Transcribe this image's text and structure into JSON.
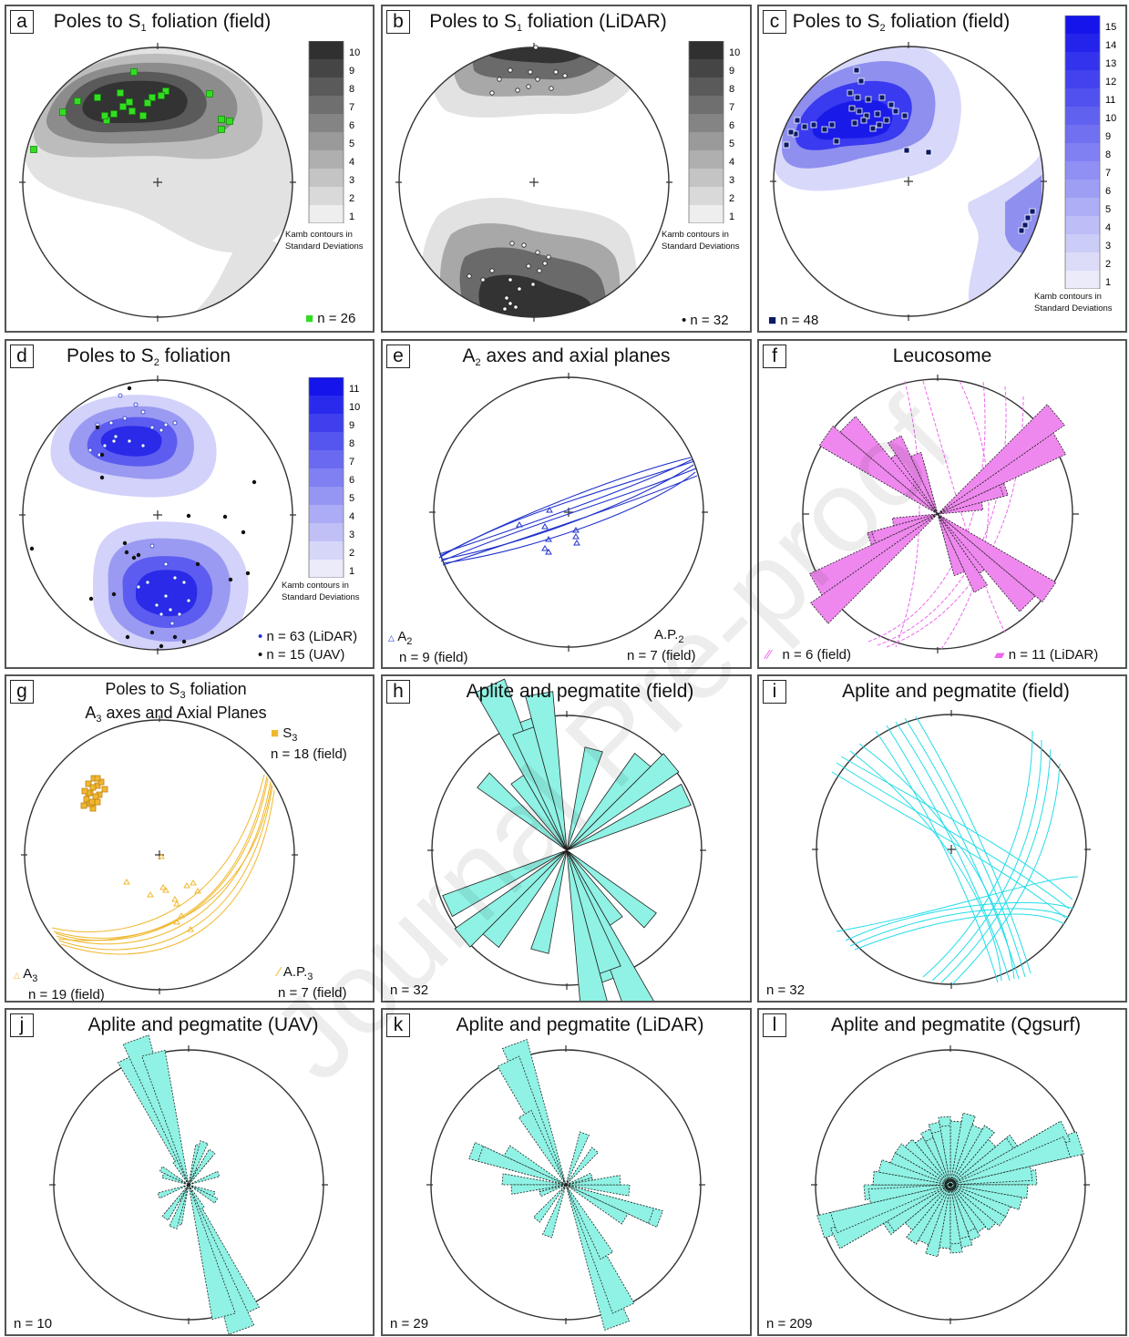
{
  "watermark": "Journal Pre-proof",
  "panels": {
    "a": {
      "label": "a",
      "title_pre": "Poles to S",
      "title_sub": "1",
      "title_post": " foliation (field)",
      "colorbar": {
        "ticks": [
          "10",
          "9",
          "8",
          "7",
          "6",
          "5",
          "4",
          "3",
          "2",
          "1"
        ],
        "note": "Kamb contours in Standard Deviations"
      },
      "count": "n = 26",
      "marker_color": "#33dd22"
    },
    "b": {
      "label": "b",
      "title_pre": "Poles to S",
      "title_sub": "1",
      "title_post": " foliation (LiDAR)",
      "colorbar": {
        "ticks": [
          "10",
          "9",
          "8",
          "7",
          "6",
          "5",
          "4",
          "3",
          "2",
          "1"
        ],
        "note": "Kamb contours in Standard Deviations"
      },
      "count": "n = 32"
    },
    "c": {
      "label": "c",
      "title_pre": "Poles to S",
      "title_sub": "2",
      "title_post": " foliation (field)",
      "colorbar": {
        "ticks": [
          "15",
          "14",
          "13",
          "12",
          "11",
          "10",
          "9",
          "8",
          "7",
          "6",
          "5",
          "4",
          "3",
          "2",
          "1"
        ],
        "note": "Kamb contours in Standard Deviations"
      },
      "count": "n = 48",
      "marker_color": "#0a1a66"
    },
    "d": {
      "label": "d",
      "title_pre": "Poles to S",
      "title_sub": "2",
      "title_post": " foliation",
      "colorbar": {
        "ticks": [
          "11",
          "10",
          "9",
          "8",
          "7",
          "6",
          "5",
          "4",
          "3",
          "2",
          "1"
        ],
        "note": "Kamb contours in Standard Deviations"
      },
      "count_lidar": "n = 63 (LiDAR)",
      "count_uav": "n = 15 (UAV)"
    },
    "e": {
      "label": "e",
      "title_pre": "A",
      "title_sub": "2",
      "title_post": " axes and axial planes",
      "legend_a_pre": "A",
      "legend_a_sub": "2",
      "legend_a_n": "n = 9 (field)",
      "legend_ap_pre": "A.P.",
      "legend_ap_sub": "2",
      "legend_ap_n": "n = 7 (field)",
      "color": "#2233cc"
    },
    "f": {
      "label": "f",
      "title": "Leucosome",
      "legend_field": "n = 6 (field)",
      "legend_lidar": "n = 11 (LiDAR)",
      "color": "#ee88ee"
    },
    "g": {
      "label": "g",
      "title_line1_pre": "Poles to S",
      "title_line1_sub": "3",
      "title_line1_post": " foliation",
      "title_line2_pre": "A",
      "title_line2_sub": "3",
      "title_line2_post": " axes and Axial Planes",
      "legend_s_pre": "S",
      "legend_s_sub": "3",
      "legend_s_n": "n = 18 (field)",
      "legend_a_pre": "A",
      "legend_a_sub": "3",
      "legend_a_n": "n = 19 (field)",
      "legend_ap_pre": "A.P.",
      "legend_ap_sub": "3",
      "legend_ap_n": "n = 7 (field)",
      "color": "#f0b830"
    },
    "h": {
      "label": "h",
      "title": "Aplite and pegmatite (field)",
      "count": "n = 32",
      "color": "#8ff2e4"
    },
    "i": {
      "label": "i",
      "title": "Aplite and pegmatite (field)",
      "count": "n = 32",
      "color": "#22dde8"
    },
    "j": {
      "label": "j",
      "title": "Aplite and pegmatite (UAV)",
      "count": "n = 10",
      "color": "#8ff2e4"
    },
    "k": {
      "label": "k",
      "title": "Aplite and pegmatite (LiDAR)",
      "count": "n = 29",
      "color": "#8ff2e4"
    },
    "l": {
      "label": "l",
      "title": "Aplite and pegmatite (Qgsurf)",
      "count": "n = 209",
      "color": "#8ff2e4"
    }
  },
  "rose_data": {
    "h": [
      [
        340,
        150
      ],
      [
        335,
        200
      ],
      [
        325,
        95
      ],
      [
        310,
        120
      ],
      [
        50,
        150
      ],
      [
        65,
        145
      ],
      [
        160,
        140
      ],
      [
        170,
        175
      ],
      [
        195,
        115
      ],
      [
        220,
        130
      ]
    ],
    "j": [
      [
        335,
        155
      ],
      [
        25,
        20
      ],
      [
        15,
        45
      ],
      [
        35,
        40
      ],
      [
        70,
        35
      ],
      [
        110,
        30
      ],
      [
        150,
        30
      ],
      [
        200,
        50
      ],
      [
        215,
        45
      ],
      [
        120,
        35
      ],
      [
        160,
        170
      ],
      [
        165,
        150
      ]
    ],
    "k": [
      [
        340,
        165
      ],
      [
        290,
        110
      ],
      [
        300,
        75
      ],
      [
        275,
        70
      ],
      [
        260,
        30
      ],
      [
        85,
        60
      ],
      [
        70,
        30
      ],
      [
        110,
        100
      ],
      [
        155,
        150
      ],
      [
        150,
        90
      ],
      [
        200,
        60
      ],
      [
        220,
        50
      ]
    ],
    "l": [
      [
        5,
        70
      ],
      [
        15,
        75
      ],
      [
        25,
        65
      ],
      [
        35,
        75
      ],
      [
        45,
        60
      ],
      [
        55,
        85
      ],
      [
        65,
        120
      ],
      [
        72,
        150
      ],
      [
        85,
        95
      ],
      [
        95,
        85
      ],
      [
        105,
        75
      ],
      [
        115,
        65
      ],
      [
        125,
        55
      ],
      [
        135,
        65
      ],
      [
        145,
        60
      ],
      [
        155,
        65
      ],
      [
        165,
        70
      ],
      [
        175,
        75
      ],
      [
        185,
        70
      ],
      [
        195,
        80
      ],
      [
        205,
        70
      ],
      [
        215,
        75
      ],
      [
        225,
        65
      ],
      [
        235,
        80
      ],
      [
        245,
        140
      ],
      [
        252,
        135
      ],
      [
        262,
        90
      ],
      [
        275,
        85
      ],
      [
        285,
        80
      ],
      [
        295,
        70
      ],
      [
        305,
        70
      ],
      [
        315,
        65
      ],
      [
        325,
        60
      ],
      [
        335,
        55
      ],
      [
        345,
        60
      ],
      [
        355,
        65
      ]
    ],
    "f": [
      [
        305,
        150
      ],
      [
        320,
        80
      ],
      [
        340,
        60
      ],
      [
        60,
        155
      ],
      [
        70,
        80
      ],
      [
        80,
        50
      ],
      [
        250,
        75
      ],
      [
        230,
        170
      ],
      [
        135,
        140
      ],
      [
        150,
        95
      ],
      [
        160,
        70
      ]
    ]
  }
}
